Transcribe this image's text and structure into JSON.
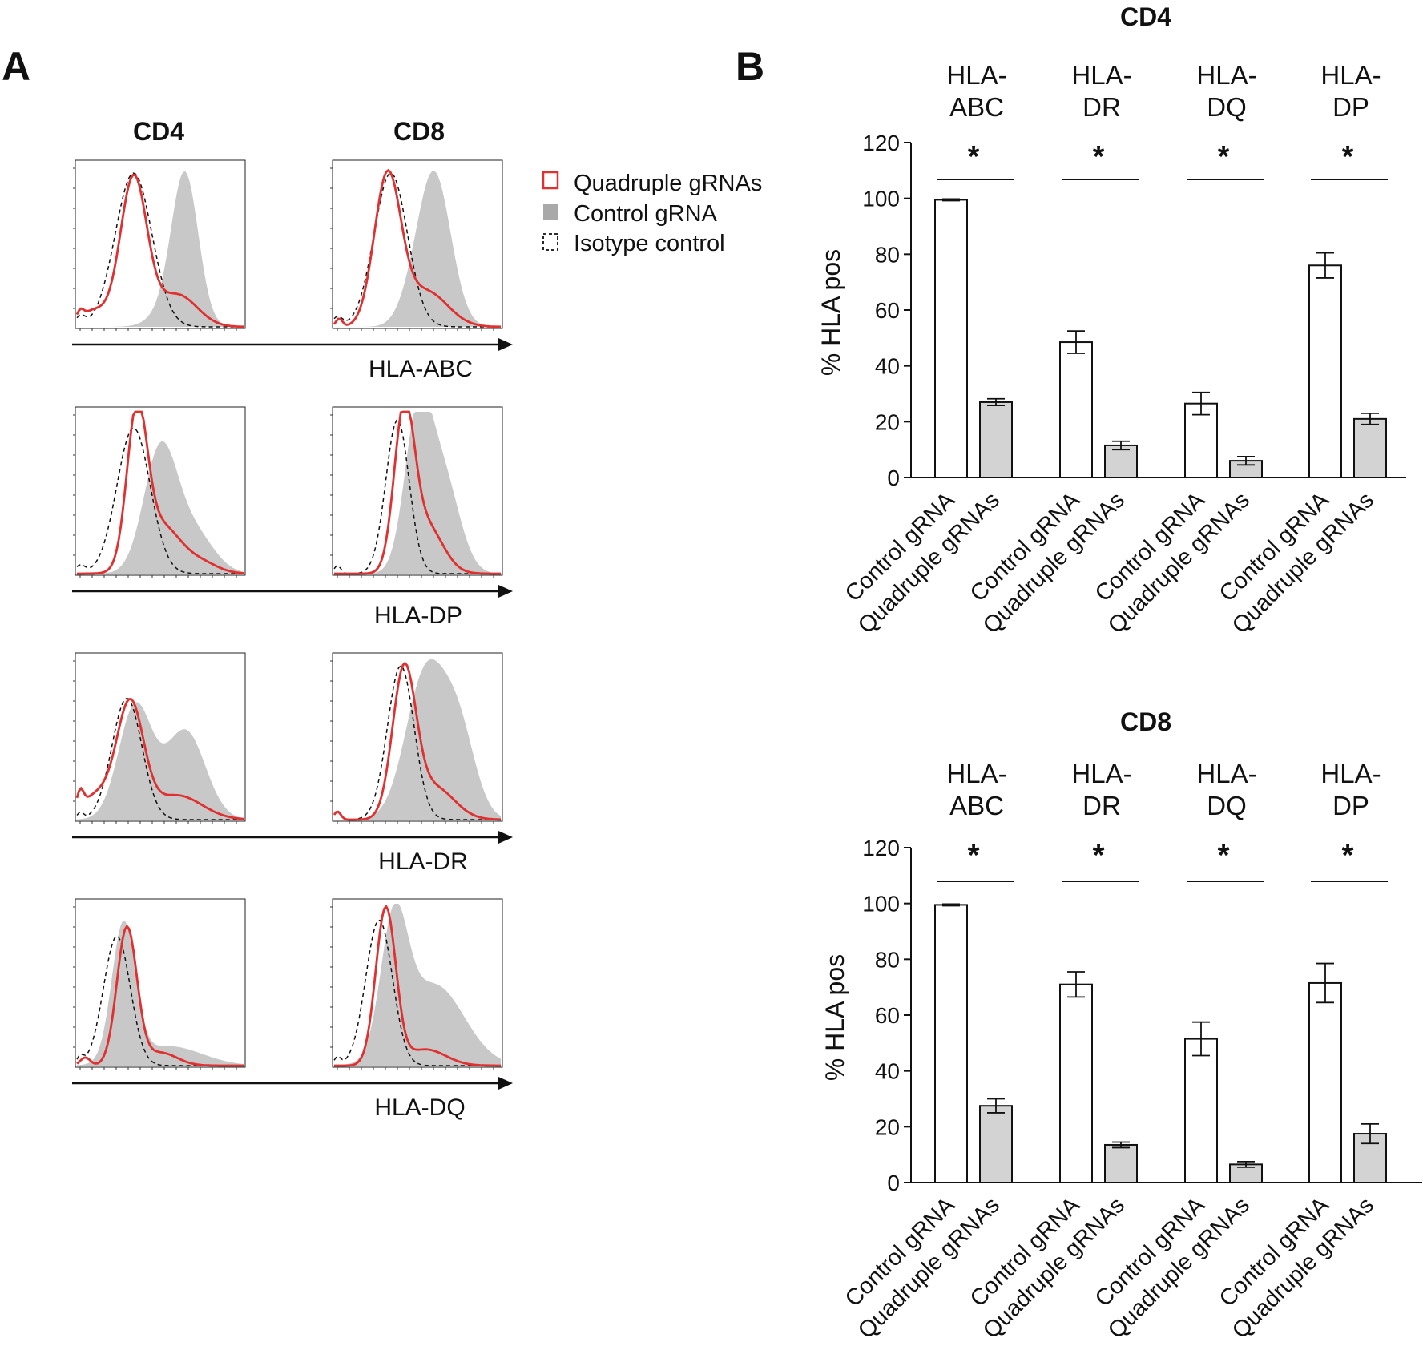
{
  "panels": {
    "a_label": "A",
    "b_label": "B"
  },
  "panel_a": {
    "column_headers": [
      "CD4",
      "CD8"
    ],
    "rows": [
      {
        "marker": "HLA-ABC"
      },
      {
        "marker": "HLA-DP"
      },
      {
        "marker": "HLA-DR"
      },
      {
        "marker": "HLA-DQ"
      }
    ],
    "legend": [
      {
        "label": "Quadruple gRNAs",
        "style": "red-outline"
      },
      {
        "label": "Control gRNA",
        "style": "grey-filled"
      },
      {
        "label": "Isotype control",
        "style": "black-dashed"
      }
    ],
    "colors": {
      "quadruple": "#e03030",
      "control": "#c8c8c8",
      "isotype": "#111111"
    }
  },
  "chart_data": [
    {
      "type": "bar",
      "title": "CD4",
      "ylabel": "% HLA pos",
      "ylim": [
        0,
        120
      ],
      "yticks": [
        "0",
        "20",
        "40",
        "60",
        "80",
        "100",
        "120"
      ],
      "groups": [
        {
          "label_line1": "HLA-",
          "label_line2": "ABC",
          "significance": "*"
        },
        {
          "label_line1": "HLA-",
          "label_line2": "DR",
          "significance": "*"
        },
        {
          "label_line1": "HLA-",
          "label_line2": "DQ",
          "significance": "*"
        },
        {
          "label_line1": "HLA-",
          "label_line2": "DP",
          "significance": "*"
        }
      ],
      "bar_labels": [
        "Control gRNA",
        "Quadruple gRNAs"
      ],
      "series": [
        {
          "name": "Control gRNA",
          "color": "#ffffff",
          "values": [
            99.5,
            48.5,
            26.5,
            76
          ],
          "errors": [
            0.3,
            4,
            4,
            4.5
          ]
        },
        {
          "name": "Quadruple gRNAs",
          "color": "#d3d3d3",
          "values": [
            27,
            11.5,
            6,
            21
          ],
          "errors": [
            1.2,
            1.5,
            1.5,
            2
          ]
        }
      ]
    },
    {
      "type": "bar",
      "title": "CD8",
      "ylabel": "% HLA pos",
      "ylim": [
        0,
        120
      ],
      "yticks": [
        "0",
        "20",
        "40",
        "60",
        "80",
        "100",
        "120"
      ],
      "groups": [
        {
          "label_line1": "HLA-",
          "label_line2": "ABC",
          "significance": "*"
        },
        {
          "label_line1": "HLA-",
          "label_line2": "DR",
          "significance": "*"
        },
        {
          "label_line1": "HLA-",
          "label_line2": "DQ",
          "significance": "*"
        },
        {
          "label_line1": "HLA-",
          "label_line2": "DP",
          "significance": "*"
        }
      ],
      "bar_labels": [
        "Control gRNA",
        "Quadruple gRNAs"
      ],
      "series": [
        {
          "name": "Control gRNA",
          "color": "#ffffff",
          "values": [
            99.5,
            71,
            51.5,
            71.5
          ],
          "errors": [
            0.3,
            4.5,
            6,
            7
          ]
        },
        {
          "name": "Quadruple gRNAs",
          "color": "#d3d3d3",
          "values": [
            27.5,
            13.5,
            6.5,
            17.5
          ],
          "errors": [
            2.5,
            1,
            1,
            3.5
          ]
        }
      ]
    }
  ]
}
